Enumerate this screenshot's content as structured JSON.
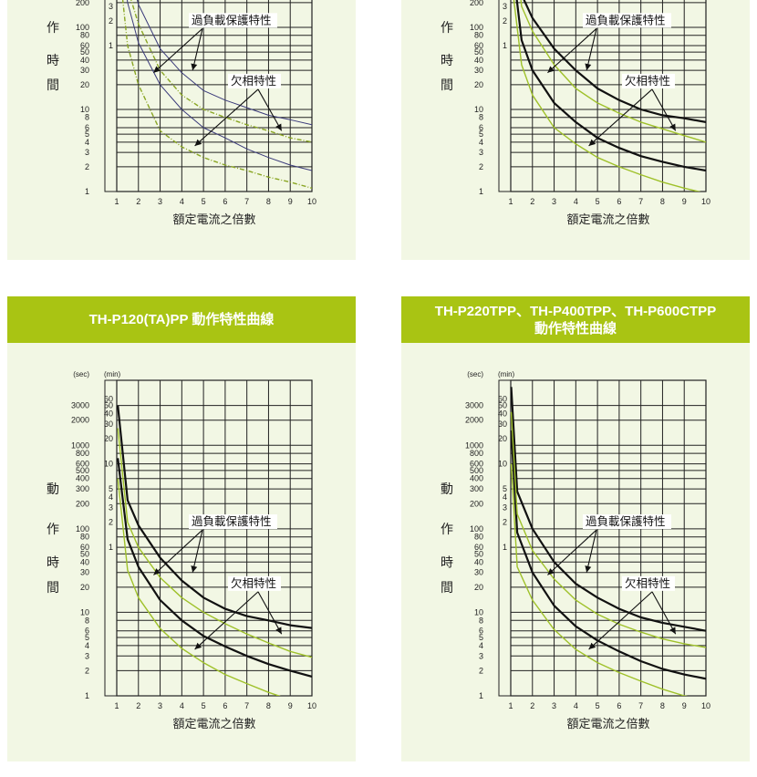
{
  "page": {
    "y_axis_label_chars": [
      "動",
      "作",
      "時",
      "間"
    ],
    "x_axis_label": "額定電流之倍數",
    "annotations": {
      "overload": "過負載保護特性",
      "phase_loss": "欠相特性"
    },
    "unit_sec": "(sec)",
    "unit_min": "(min)",
    "sec_ticks": [
      "3000",
      "2000",
      "1000",
      "800",
      "600",
      "500",
      "400",
      "300",
      "200",
      "100",
      "80",
      "60",
      "50",
      "40",
      "30",
      "20",
      "10",
      "8",
      "6",
      "5",
      "4",
      "3",
      "2",
      "1"
    ],
    "min_ticks": [
      "60",
      "50",
      "40",
      "30",
      "20",
      "10",
      "5",
      "4",
      "3",
      "2",
      "1"
    ],
    "x_ticks": [
      "1",
      "2",
      "3",
      "4",
      "5",
      "6",
      "7",
      "8",
      "9",
      "10"
    ]
  },
  "panels": [
    {
      "id": "tl",
      "title": "",
      "title_line2": ""
    },
    {
      "id": "tr",
      "title": "",
      "title_line2": ""
    },
    {
      "id": "bl",
      "title": "TH-P120(TA)PP 動作特性曲線",
      "title_line2": ""
    },
    {
      "id": "br",
      "title": "TH-P220TPP、TH-P400TPP、TH-P600CTPP",
      "title_line2": "動作特性曲線"
    }
  ],
  "colors": {
    "header": "#a9c413",
    "panel_bg": "#f2f7e4",
    "overload_curve": "#111111",
    "phase_curve": "#9fc12a"
  },
  "chart_data": [
    {
      "type": "line",
      "title": "",
      "xlabel": "額定電流之倍數",
      "ylabel": "動作時間",
      "xlim": [
        1,
        10
      ],
      "ylim_sec": [
        1,
        3000
      ],
      "y_scale": "log",
      "grid": true,
      "series": [
        {
          "name": "過負載保護特性",
          "style": "thin-blue",
          "x": [
            1.05,
            1.5,
            2,
            3,
            4,
            5,
            6,
            7,
            8,
            9,
            10
          ],
          "y": [
            5000,
            600,
            190,
            55,
            28,
            17,
            13,
            10.5,
            8.5,
            7.5,
            6.5
          ]
        },
        {
          "name": "過負載保護特性",
          "style": "thin-blue",
          "x": [
            1.05,
            1.5,
            2,
            3,
            4,
            5,
            6,
            7,
            8,
            9,
            10
          ],
          "y": [
            1500,
            200,
            65,
            20,
            10,
            6,
            4.5,
            3.3,
            2.6,
            2.1,
            1.8
          ]
        },
        {
          "name": "欠相特性",
          "style": "dashed-green",
          "x": [
            1.05,
            1.5,
            2,
            3,
            4,
            5,
            6,
            7,
            8,
            9,
            10
          ],
          "y": [
            3000,
            300,
            110,
            30,
            15,
            10,
            8,
            6.5,
            5.5,
            4.5,
            4
          ]
        },
        {
          "name": "欠相特性",
          "style": "dashed-green",
          "x": [
            1.05,
            1.5,
            2,
            3,
            4,
            5,
            6,
            7,
            8,
            9,
            10
          ],
          "y": [
            800,
            60,
            20,
            5.5,
            3.5,
            2.6,
            2.1,
            1.8,
            1.5,
            1.3,
            1.1
          ]
        }
      ]
    },
    {
      "type": "line",
      "title": "",
      "xlabel": "額定電流之倍數",
      "ylabel": "動作時間",
      "xlim": [
        1,
        10
      ],
      "ylim_sec": [
        1,
        3000
      ],
      "y_scale": "log",
      "grid": true,
      "series": [
        {
          "name": "過負載保護特性",
          "style": "thick-black",
          "x": [
            1.05,
            1.5,
            2,
            3,
            4,
            5,
            6,
            7,
            8,
            9,
            10
          ],
          "y": [
            3000,
            250,
            130,
            55,
            30,
            18,
            13,
            10,
            8.5,
            7.8,
            7
          ]
        },
        {
          "name": "過負載保護特性",
          "style": "thick-black",
          "x": [
            1.05,
            1.5,
            2,
            3,
            4,
            5,
            6,
            7,
            8,
            9,
            10
          ],
          "y": [
            700,
            70,
            30,
            12,
            7,
            4.5,
            3.4,
            2.7,
            2.3,
            2,
            1.8
          ]
        },
        {
          "name": "欠相特性",
          "style": "thin-green",
          "x": [
            1.05,
            1.5,
            2,
            3,
            4,
            5,
            6,
            7,
            8,
            9,
            10
          ],
          "y": [
            2000,
            180,
            90,
            35,
            18,
            12,
            9,
            7,
            5.8,
            4.8,
            4
          ]
        },
        {
          "name": "欠相特性",
          "style": "thin-green",
          "x": [
            1.05,
            1.5,
            2,
            3,
            4,
            5,
            6,
            7,
            8,
            9,
            10
          ],
          "y": [
            350,
            35,
            15,
            6,
            3.8,
            2.6,
            2,
            1.6,
            1.3,
            1.1,
            0.95
          ]
        }
      ]
    },
    {
      "type": "line",
      "title": "TH-P120(TA)PP 動作特性曲線",
      "xlabel": "額定電流之倍數",
      "ylabel": "動作時間",
      "xlim": [
        1,
        10
      ],
      "ylim_sec": [
        1,
        3000
      ],
      "y_scale": "log",
      "grid": true,
      "series": [
        {
          "name": "過負載保護特性",
          "style": "thick-black",
          "x": [
            1.05,
            1.5,
            2,
            3,
            4,
            5,
            6,
            7,
            8,
            9,
            10
          ],
          "y": [
            3000,
            220,
            110,
            45,
            24,
            15,
            11,
            9,
            8,
            7,
            6.5
          ]
        },
        {
          "name": "過負載保護特性",
          "style": "thick-black",
          "x": [
            1.05,
            1.5,
            2,
            3,
            4,
            5,
            6,
            7,
            8,
            9,
            10
          ],
          "y": [
            700,
            75,
            35,
            14,
            8,
            5.2,
            3.9,
            3,
            2.4,
            2,
            1.7
          ]
        },
        {
          "name": "欠相特性",
          "style": "thin-green",
          "x": [
            1.05,
            1.5,
            2,
            3,
            4,
            5,
            6,
            7,
            8,
            9,
            10
          ],
          "y": [
            1600,
            120,
            60,
            26,
            15,
            10,
            7.3,
            5.5,
            4.3,
            3.4,
            2.9
          ]
        },
        {
          "name": "欠相特性",
          "style": "thin-green",
          "x": [
            1.05,
            1.5,
            2,
            3,
            4,
            5,
            6,
            7,
            8,
            9,
            10
          ],
          "y": [
            400,
            32,
            15,
            6.4,
            3.7,
            2.5,
            1.8,
            1.4,
            1.1,
            0.9,
            0.8
          ]
        }
      ]
    },
    {
      "type": "line",
      "title": "TH-P220TPP、TH-P400TPP、TH-P600CTPP 動作特性曲線",
      "xlabel": "額定電流之倍數",
      "ylabel": "動作時間",
      "xlim": [
        1,
        10
      ],
      "ylim_sec": [
        1,
        3000
      ],
      "y_scale": "log",
      "grid": true,
      "series": [
        {
          "name": "過負載保護特性",
          "style": "thick-black",
          "x": [
            1.02,
            1.3,
            2,
            3,
            4,
            5,
            6,
            7,
            8,
            9,
            10
          ],
          "y": [
            5000,
            280,
            100,
            40,
            22,
            15,
            11,
            8.7,
            7.5,
            6.7,
            6
          ]
        },
        {
          "name": "過負載保護特性",
          "style": "thick-black",
          "x": [
            1.02,
            1.3,
            2,
            3,
            4,
            5,
            6,
            7,
            8,
            9,
            10
          ],
          "y": [
            1500,
            90,
            30,
            12,
            6.8,
            4.6,
            3.4,
            2.6,
            2.1,
            1.8,
            1.6
          ]
        },
        {
          "name": "欠相特性",
          "style": "thin-green",
          "x": [
            1.02,
            1.3,
            2,
            3,
            4,
            5,
            6,
            7,
            8,
            9,
            10
          ],
          "y": [
            2500,
            150,
            55,
            25,
            14,
            9.5,
            7.2,
            5.8,
            4.8,
            4.2,
            3.8
          ]
        },
        {
          "name": "欠相特性",
          "style": "thin-green",
          "x": [
            1.02,
            1.3,
            2,
            3,
            4,
            5,
            6,
            7,
            8,
            9,
            10
          ],
          "y": [
            600,
            35,
            14,
            6.2,
            3.6,
            2.5,
            1.9,
            1.5,
            1.2,
            1,
            0.9
          ]
        }
      ]
    }
  ]
}
